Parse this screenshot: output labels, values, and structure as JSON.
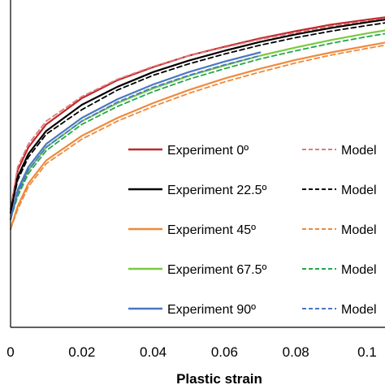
{
  "chart_data": {
    "type": "line",
    "title": "",
    "xlabel": "Plastic strain",
    "ylabel": "",
    "xlim": [
      0,
      0.105
    ],
    "ylim": [
      0,
      1
    ],
    "x_ticks": [
      "0",
      "0.02",
      "0.04",
      "0.06",
      "0.08",
      "0.1"
    ],
    "x_tick_values": [
      0,
      0.02,
      0.04,
      0.06,
      0.08,
      0.1
    ],
    "grid": false,
    "legend_position": "bottom-right",
    "series": [
      {
        "name": "Experiment 0º",
        "style": "solid",
        "color": "#c0282d",
        "x": [
          0,
          0.002,
          0.005,
          0.01,
          0.02,
          0.03,
          0.04,
          0.05,
          0.06,
          0.07,
          0.08,
          0.09,
          0.1,
          0.105
        ],
        "y": [
          0.36,
          0.48,
          0.55,
          0.62,
          0.7,
          0.755,
          0.795,
          0.83,
          0.857,
          0.883,
          0.905,
          0.925,
          0.94,
          0.947
        ]
      },
      {
        "name": "Model",
        "style": "dashed",
        "color": "#e07a7a",
        "x": [
          0,
          0.002,
          0.005,
          0.01,
          0.02,
          0.03,
          0.04,
          0.05,
          0.06,
          0.07,
          0.08,
          0.09,
          0.1,
          0.105
        ],
        "y": [
          0.36,
          0.49,
          0.56,
          0.63,
          0.705,
          0.758,
          0.797,
          0.83,
          0.855,
          0.88,
          0.9,
          0.92,
          0.935,
          0.942
        ]
      },
      {
        "name": "Experiment 22.5º",
        "style": "solid",
        "color": "#000000",
        "x": [
          0,
          0.002,
          0.005,
          0.01,
          0.02,
          0.03,
          0.04,
          0.05,
          0.06,
          0.07,
          0.08,
          0.09,
          0.1,
          0.105
        ],
        "y": [
          0.35,
          0.46,
          0.53,
          0.6,
          0.68,
          0.735,
          0.78,
          0.815,
          0.845,
          0.872,
          0.895,
          0.915,
          0.932,
          0.94
        ]
      },
      {
        "name": "Model",
        "style": "dashed",
        "color": "#000000",
        "x": [
          0,
          0.002,
          0.005,
          0.01,
          0.02,
          0.03,
          0.04,
          0.05,
          0.06,
          0.07,
          0.08,
          0.09,
          0.1,
          0.105
        ],
        "y": [
          0.35,
          0.45,
          0.52,
          0.59,
          0.665,
          0.725,
          0.77,
          0.805,
          0.835,
          0.862,
          0.885,
          0.905,
          0.922,
          0.93
        ]
      },
      {
        "name": "Experiment 45º",
        "style": "solid",
        "color": "#ef8a3c",
        "x": [
          0,
          0.002,
          0.005,
          0.01,
          0.02,
          0.03,
          0.04,
          0.05,
          0.06,
          0.07,
          0.08,
          0.09,
          0.1,
          0.105
        ],
        "y": [
          0.3,
          0.37,
          0.44,
          0.51,
          0.585,
          0.64,
          0.685,
          0.725,
          0.76,
          0.79,
          0.817,
          0.84,
          0.86,
          0.87
        ]
      },
      {
        "name": "Model",
        "style": "dashed",
        "color": "#ef8a3c",
        "x": [
          0,
          0.002,
          0.005,
          0.01,
          0.02,
          0.03,
          0.04,
          0.05,
          0.06,
          0.07,
          0.08,
          0.09,
          0.1,
          0.105
        ],
        "y": [
          0.3,
          0.36,
          0.43,
          0.5,
          0.575,
          0.63,
          0.675,
          0.715,
          0.75,
          0.78,
          0.808,
          0.832,
          0.852,
          0.862
        ]
      },
      {
        "name": "Experiment 67.5º",
        "style": "solid",
        "color": "#7ac943",
        "x": [
          0,
          0.002,
          0.005,
          0.01,
          0.02,
          0.03,
          0.04,
          0.05,
          0.06,
          0.07,
          0.08,
          0.09,
          0.1,
          0.105
        ],
        "y": [
          0.33,
          0.41,
          0.48,
          0.55,
          0.63,
          0.685,
          0.73,
          0.768,
          0.8,
          0.83,
          0.855,
          0.878,
          0.898,
          0.907
        ]
      },
      {
        "name": "Model",
        "style": "dashed",
        "color": "#22a94b",
        "x": [
          0,
          0.002,
          0.005,
          0.01,
          0.02,
          0.03,
          0.04,
          0.05,
          0.06,
          0.07,
          0.08,
          0.09,
          0.1,
          0.105
        ],
        "y": [
          0.33,
          0.4,
          0.47,
          0.54,
          0.62,
          0.675,
          0.72,
          0.758,
          0.79,
          0.82,
          0.845,
          0.868,
          0.888,
          0.897
        ]
      },
      {
        "name": "Experiment 90º",
        "style": "solid",
        "color": "#4a78c2",
        "x": [
          0,
          0.002,
          0.005,
          0.01,
          0.02,
          0.03,
          0.04,
          0.05,
          0.06,
          0.07
        ],
        "y": [
          0.33,
          0.42,
          0.49,
          0.56,
          0.64,
          0.697,
          0.742,
          0.78,
          0.812,
          0.84
        ]
      },
      {
        "name": "Model",
        "style": "dashed",
        "color": "#4a78c2",
        "x": [
          0,
          0.002,
          0.005,
          0.01,
          0.02,
          0.03,
          0.04,
          0.05,
          0.06,
          0.07
        ],
        "y": [
          0.33,
          0.41,
          0.48,
          0.55,
          0.63,
          0.688,
          0.733,
          0.77,
          0.802,
          0.83
        ]
      }
    ]
  }
}
